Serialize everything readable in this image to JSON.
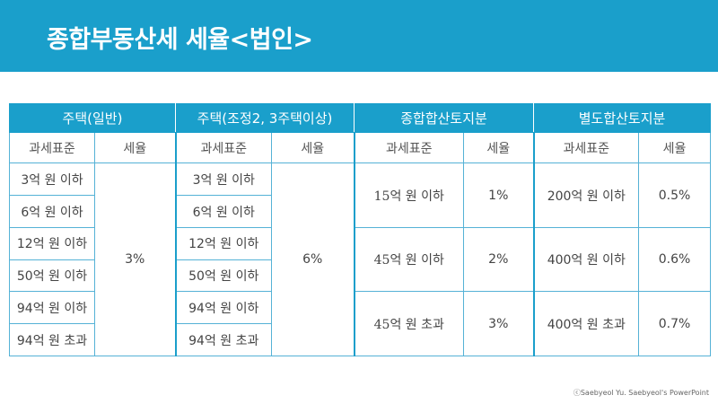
{
  "header": {
    "title": "종합부동산세 세율<법인>"
  },
  "table": {
    "groups": [
      "주택(일반)",
      "주택(조정2, 3주택이상)",
      "종합합산토지분",
      "별도합산토지분"
    ],
    "sub": {
      "standard": "과세표준",
      "rate": "세율"
    },
    "housing_general": {
      "brackets": [
        "3억 원 이하",
        "6억 원 이하",
        "12억 원 이하",
        "50억 원 이하",
        "94억 원 이하",
        "94억 원 초과"
      ],
      "rate": "3%"
    },
    "housing_adjusted": {
      "brackets": [
        "3억 원 이하",
        "6억 원 이하",
        "12억 원 이하",
        "50억 원 이하",
        "94억 원 이하",
        "94억 원 초과"
      ],
      "rate": "6%"
    },
    "comprehensive_land": [
      {
        "standard": "15억 원 이하",
        "rate": "1%"
      },
      {
        "standard": "45억 원 이하",
        "rate": "2%"
      },
      {
        "standard": "45억 원 초과",
        "rate": "3%"
      }
    ],
    "separate_land": [
      {
        "standard": "200억 원 이하",
        "rate": "0.5%"
      },
      {
        "standard": "400억 원 이하",
        "rate": "0.6%"
      },
      {
        "standard": "400억 원 초과",
        "rate": "0.7%"
      }
    ]
  },
  "footer": {
    "copyright": "ⓒSaebyeol Yu. Saebyeol's PowerPoint"
  }
}
